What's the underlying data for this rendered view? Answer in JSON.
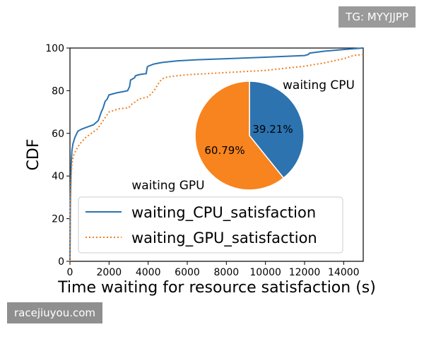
{
  "watermarks": {
    "top": "TG: MYYJJPP",
    "bottom": "racejiuyou.com"
  },
  "chart_data": {
    "type": "line",
    "xlabel": "Time waiting for resource satisfaction (s)",
    "ylabel": "CDF",
    "xlim": [
      0,
      15000
    ],
    "ylim": [
      0,
      100
    ],
    "xticks": [
      "0",
      "2000",
      "4000",
      "6000",
      "8000",
      "10000",
      "12000",
      "14000"
    ],
    "yticks": [
      "0",
      "20",
      "40",
      "60",
      "80",
      "100"
    ],
    "grid": false,
    "legend_position": "lower-center",
    "series": [
      {
        "name": "waiting_CPU_satisfaction",
        "color": "#2c73b0",
        "style": "solid",
        "x": [
          0,
          20,
          60,
          100,
          150,
          250,
          400,
          600,
          900,
          1200,
          1450,
          1600,
          1700,
          1800,
          1900,
          2000,
          2200,
          2400,
          2700,
          2950,
          3050,
          3100,
          3300,
          3350,
          3450,
          3600,
          3900,
          3950,
          4000,
          4300,
          4700,
          5500,
          6500,
          8000,
          10000,
          12000,
          12200,
          12250,
          13000,
          14000,
          15000
        ],
        "y": [
          0,
          30,
          45,
          52,
          55,
          58,
          61,
          62,
          63,
          64,
          66,
          70,
          72,
          75,
          76,
          78,
          78.5,
          79,
          79.5,
          80,
          82,
          85,
          86,
          87,
          87.3,
          87.6,
          88,
          91,
          91.5,
          92.5,
          93.2,
          94,
          94.5,
          95,
          95.7,
          96.5,
          97,
          97.6,
          98.5,
          99.3,
          100
        ]
      },
      {
        "name": "waiting_GPU_satisfaction",
        "color": "#f07e1d",
        "style": "dotted",
        "x": [
          0,
          20,
          60,
          100,
          200,
          300,
          500,
          800,
          1100,
          1400,
          1700,
          2000,
          2500,
          3000,
          3200,
          3400,
          3500,
          3700,
          3950,
          4100,
          4300,
          4500,
          4700,
          5000,
          6000,
          8000,
          10000,
          11000,
          12000,
          13000,
          14000,
          14500,
          15000
        ],
        "y": [
          0,
          25,
          40,
          46,
          50,
          52,
          55,
          58,
          60,
          62,
          66,
          70,
          71.5,
          72,
          74,
          75,
          76,
          76.5,
          77,
          78,
          80,
          83,
          85.5,
          86.5,
          87.5,
          88.5,
          89.5,
          90.5,
          91.5,
          93,
          95,
          96.5,
          97
        ]
      }
    ],
    "inset_pie": {
      "type": "pie",
      "slices": [
        {
          "label": "waiting CPU",
          "value": 39.21,
          "pct_label": "39.21%",
          "color": "#2c73b0"
        },
        {
          "label": "waiting GPU",
          "value": 60.79,
          "pct_label": "60.79%",
          "color": "#f7841e"
        }
      ]
    }
  }
}
